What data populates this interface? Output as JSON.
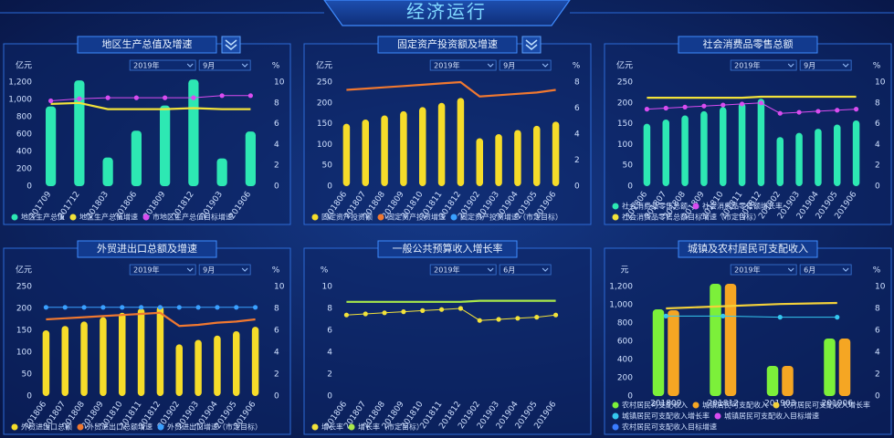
{
  "title": "经济运行",
  "chart_data": [
    {
      "type": "bar",
      "title": "地区生产总值及增速",
      "filters": [
        "2019年",
        "9月"
      ],
      "y_label": "亿元",
      "y2_label": "%",
      "categories": [
        "201709",
        "201712",
        "201803",
        "201806",
        "201809",
        "201812",
        "201903",
        "201906"
      ],
      "ylim": [
        0,
        1200
      ],
      "yticks": [
        0,
        200,
        400,
        600,
        800,
        {
          "value": 1000,
          "label": "1,000"
        },
        {
          "value": 1200,
          "label": "1,200"
        }
      ],
      "y2lim": [
        0,
        10
      ],
      "y2ticks": [
        0,
        2,
        4,
        6,
        8,
        10
      ],
      "series": [
        {
          "name": "地区生产总值",
          "type": "bar",
          "color": "#2de8b3",
          "values": [
            920,
            1220,
            330,
            640,
            930,
            1230,
            320,
            630
          ]
        },
        {
          "name": "地区生产总值增速",
          "type": "line",
          "axis": "y2",
          "color": "#f2e23a",
          "values": [
            7.9,
            8.0,
            7.4,
            7.4,
            7.4,
            7.5,
            7.4,
            7.4
          ]
        },
        {
          "name": "市地区生产总值目标增速",
          "type": "line",
          "axis": "y2",
          "markers": true,
          "color": "#d94cf0",
          "values": [
            8.2,
            8.4,
            8.5,
            8.5,
            8.5,
            8.5,
            8.7,
            8.7
          ]
        }
      ]
    },
    {
      "type": "bar",
      "title": "固定资产投资额及增速",
      "filters": [
        "2019年",
        "9月"
      ],
      "y_label": "亿元",
      "y2_label": "%",
      "categories": [
        "201806",
        "201807",
        "201808",
        "201809",
        "201810",
        "201811",
        "201812",
        "201902",
        "201903",
        "201904",
        "201905",
        "201906"
      ],
      "ylim": [
        0,
        250
      ],
      "yticks": [
        0,
        50,
        100,
        150,
        200,
        250
      ],
      "y2lim": [
        0,
        8
      ],
      "y2ticks": [
        0,
        2,
        4,
        6,
        8
      ],
      "series": [
        {
          "name": "固定资产投资额",
          "type": "bar",
          "color": "#f5dc2a",
          "values": [
            150,
            160,
            170,
            180,
            190,
            200,
            212,
            115,
            125,
            135,
            145,
            155
          ]
        },
        {
          "name": "固定资产投资增速",
          "type": "line",
          "axis": "y2",
          "color": "#f07830",
          "values": [
            7.4,
            7.5,
            7.6,
            7.7,
            7.8,
            7.9,
            8.0,
            6.9,
            7.0,
            7.1,
            7.2,
            7.4
          ]
        },
        {
          "name": "固定资产投资增速（市定目标）",
          "type": "line",
          "axis": "y2",
          "color": "#3aa0ff",
          "values": [
            null,
            null,
            null,
            null,
            null,
            null,
            null,
            null,
            null,
            null,
            null,
            null
          ]
        }
      ]
    },
    {
      "type": "bar",
      "title": "社会消费品零售总额",
      "filters": [
        "2019年",
        "9月"
      ],
      "y_label": "亿元",
      "y2_label": "%",
      "categories": [
        "201806",
        "201807",
        "201808",
        "201809",
        "201810",
        "201811",
        "201812",
        "201902",
        "201903",
        "201904",
        "201905",
        "201906"
      ],
      "ylim": [
        0,
        250
      ],
      "yticks": [
        0,
        50,
        100,
        150,
        200,
        250
      ],
      "y2lim": [
        0,
        10
      ],
      "y2ticks": [
        0,
        2,
        4,
        6,
        8,
        10
      ],
      "series": [
        {
          "name": "社会消费品零售总额",
          "type": "bar",
          "color": "#2de8b3",
          "values": [
            150,
            160,
            170,
            180,
            190,
            200,
            210,
            118,
            128,
            138,
            148,
            158
          ]
        },
        {
          "name": "社会消费品零售额增长率",
          "type": "line",
          "axis": "y2",
          "markers": true,
          "color": "#d94cf0",
          "values": [
            7.4,
            7.5,
            7.6,
            7.7,
            7.8,
            7.9,
            8.0,
            7.0,
            7.1,
            7.2,
            7.3,
            7.4
          ]
        },
        {
          "name": "社会消费品零售总额目标增速（市定目标）",
          "type": "line",
          "axis": "y2",
          "color": "#f2e23a",
          "values": [
            8.5,
            8.5,
            8.5,
            8.5,
            8.5,
            8.5,
            8.6,
            8.6,
            8.6,
            8.6,
            8.6,
            8.6
          ]
        }
      ]
    },
    {
      "type": "bar",
      "title": "外贸进出口总额及增速",
      "filters": [
        "2019年",
        "9月"
      ],
      "y_label": "亿元",
      "y2_label": "%",
      "categories": [
        "201806",
        "201807",
        "201808",
        "201809",
        "201810",
        "201811",
        "201812",
        "201902",
        "201903",
        "201904",
        "201905",
        "201906"
      ],
      "ylim": [
        0,
        250
      ],
      "yticks": [
        0,
        50,
        100,
        150,
        200,
        250
      ],
      "y2lim": [
        0,
        10
      ],
      "y2ticks": [
        0,
        2,
        4,
        6,
        8,
        10
      ],
      "series": [
        {
          "name": "外贸进出口总额",
          "type": "bar",
          "color": "#f5dc2a",
          "values": [
            150,
            160,
            170,
            180,
            190,
            200,
            205,
            118,
            128,
            138,
            148,
            158
          ]
        },
        {
          "name": "外贸进出口总额增速",
          "type": "line",
          "axis": "y2",
          "color": "#f07830",
          "values": [
            7.0,
            7.1,
            7.2,
            7.3,
            7.4,
            7.5,
            7.6,
            6.4,
            6.5,
            6.7,
            6.8,
            7.0
          ]
        },
        {
          "name": "外贸进出口增速（市定目标）",
          "type": "line",
          "axis": "y2",
          "markers": true,
          "color": "#3aa0ff",
          "values": [
            8.1,
            8.1,
            8.1,
            8.1,
            8.1,
            8.1,
            8.1,
            8.1,
            8.1,
            8.1,
            8.1,
            8.1
          ]
        }
      ]
    },
    {
      "type": "line",
      "title": "一般公共预算收入增长率",
      "filters": [
        "2019年",
        "6月"
      ],
      "y_label": "%",
      "categories": [
        "201806",
        "201807",
        "201808",
        "201809",
        "201810",
        "201811",
        "201812",
        "201902",
        "201903",
        "201904",
        "201905",
        "201906"
      ],
      "ylim": [
        0,
        10
      ],
      "yticks": [
        0,
        2,
        4,
        6,
        8,
        10
      ],
      "series": [
        {
          "name": "增长率",
          "type": "line",
          "markers": true,
          "color": "#f2e23a",
          "values": [
            7.4,
            7.5,
            7.6,
            7.7,
            7.8,
            7.9,
            8.0,
            6.9,
            7.0,
            7.1,
            7.2,
            7.4
          ]
        },
        {
          "name": "增长率（市定目标）",
          "type": "line",
          "color": "#a8e84a",
          "values": [
            8.6,
            8.6,
            8.6,
            8.6,
            8.6,
            8.6,
            8.6,
            8.7,
            8.7,
            8.7,
            8.7,
            8.7
          ]
        }
      ]
    },
    {
      "type": "bar",
      "title": "城镇及农村居民可支配收入",
      "filters": [
        "2019年",
        "6月"
      ],
      "y_label": "元",
      "y2_label": "%",
      "categories": [
        "201809",
        "201812",
        "201903",
        "201906"
      ],
      "ylim": [
        0,
        1200
      ],
      "yticks": [
        0,
        200,
        400,
        600,
        800,
        {
          "value": 1000,
          "label": "1,000"
        },
        {
          "value": 1200,
          "label": "1,200"
        }
      ],
      "y2lim": [
        0,
        10
      ],
      "y2ticks": [
        0,
        2,
        4,
        6,
        8,
        10
      ],
      "series": [
        {
          "name": "农村居民可支配收入",
          "type": "bar",
          "color": "#7cf03a",
          "values": [
            950,
            1230,
            330,
            630
          ]
        },
        {
          "name": "城镇居民可支配收入",
          "type": "bar",
          "color": "#f5a623",
          "values": [
            940,
            1230,
            330,
            630
          ]
        },
        {
          "name": "农村居民可支配收入增长率",
          "type": "line",
          "axis": "y2",
          "color": "#f2d03a",
          "values": [
            8.0,
            8.2,
            8.4,
            8.5
          ]
        },
        {
          "name": "城镇居民可支配收入增长率",
          "type": "line",
          "axis": "y2",
          "markers": true,
          "color": "#35c8f0",
          "values": [
            7.3,
            7.3,
            7.2,
            7.2
          ]
        },
        {
          "name": "城镇居民可支配收入目标增速",
          "type": "line",
          "axis": "y2",
          "color": "#d94cf0",
          "values": [
            null,
            null,
            null,
            null
          ]
        },
        {
          "name": "农村居民可支配收入目标增速",
          "type": "line",
          "axis": "y2",
          "color": "#3a7cff",
          "values": [
            null,
            null,
            null,
            null
          ]
        }
      ]
    }
  ]
}
